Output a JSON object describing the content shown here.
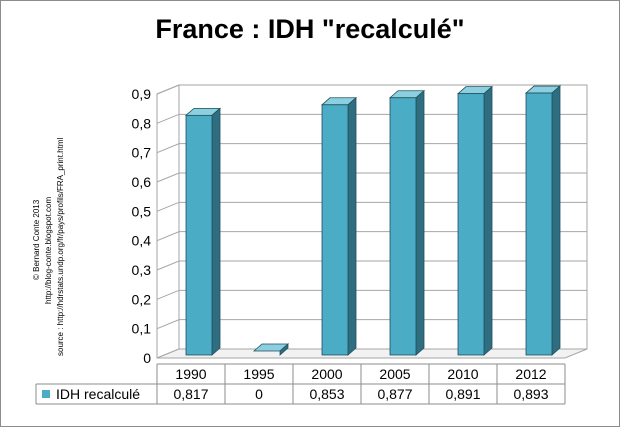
{
  "chart_data": {
    "type": "bar",
    "title": "France : IDH \"recalculé\"",
    "categories": [
      "1990",
      "1995",
      "2000",
      "2005",
      "2010",
      "2012"
    ],
    "series": [
      {
        "name": "IDH recalculé",
        "values": [
          0.817,
          0,
          0.853,
          0.877,
          0.891,
          0.893
        ],
        "labels": [
          "0,817",
          "0",
          "0,853",
          "0,877",
          "0,891",
          "0,893"
        ]
      }
    ],
    "yticks": [
      "0",
      "0,1",
      "0,2",
      "0,3",
      "0,4",
      "0,5",
      "0,6",
      "0,7",
      "0,8",
      "0,9"
    ],
    "ylim": [
      0,
      0.9
    ],
    "grid": true,
    "legend": "data-table-left",
    "colors": {
      "bar_front": "#4bacc6",
      "bar_side": "#2e6e80",
      "bar_top": "#8ccfe0"
    }
  },
  "notes": {
    "line1": "© Bernard Conte 2013",
    "line2": "http://blog-conte.blogspot.com",
    "line3": "source : http://hdrstats.undp.org/fr/pays/profils/FRA_print.html"
  }
}
